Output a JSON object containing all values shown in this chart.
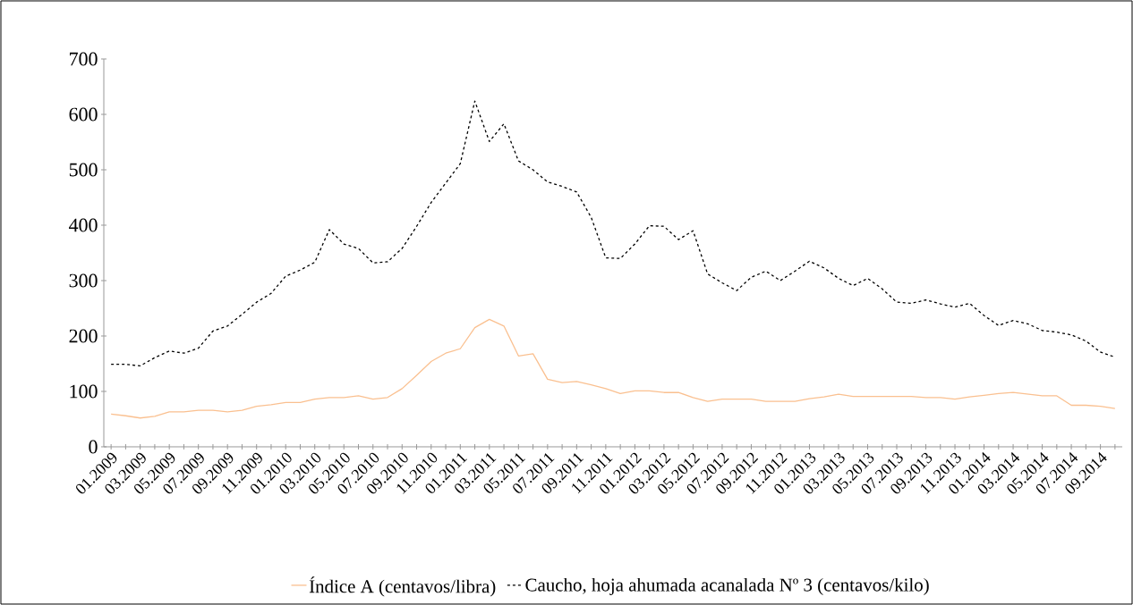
{
  "chart_data": {
    "type": "line",
    "categories": [
      "01.2009",
      null,
      "03.2009",
      null,
      "05.2009",
      null,
      "07.2009",
      null,
      "09.2009",
      null,
      "11.2009",
      null,
      "01.2010",
      null,
      "03.2010",
      null,
      "05.2010",
      null,
      "07.2010",
      null,
      "09.2010",
      null,
      "11.2010",
      null,
      "01.2011",
      null,
      "03.2011",
      null,
      "05.2011",
      null,
      "07.2011",
      null,
      "09.2011",
      null,
      "11.2011",
      null,
      "01.2012",
      null,
      "03.2012",
      null,
      "05.2012",
      null,
      "07.2012",
      null,
      "09.2012",
      null,
      "11.2012",
      null,
      "01.2013",
      null,
      "03.2013",
      null,
      "05.2013",
      null,
      "07.2013",
      null,
      "09.2013",
      null,
      "11.2013",
      null,
      "01.2014",
      null,
      "03.2014",
      null,
      "05.2014",
      null,
      "07.2014",
      null,
      "09.2014",
      null
    ],
    "series": [
      {
        "name": "Índice A (centavos/libra)",
        "color": "#fac090",
        "line_style": "solid",
        "values": [
          59,
          56,
          52,
          55,
          63,
          63,
          66,
          66,
          63,
          66,
          73,
          76,
          80,
          80,
          86,
          89,
          89,
          92,
          86,
          89,
          105,
          129,
          154,
          169,
          177,
          215,
          230,
          218,
          164,
          168,
          122,
          116,
          118,
          112,
          105,
          96,
          101,
          101,
          98,
          98,
          89,
          82,
          86,
          86,
          86,
          82,
          82,
          82,
          87,
          90,
          95,
          91,
          91,
          91,
          91,
          91,
          89,
          89,
          86,
          90,
          93,
          96,
          98,
          95,
          92,
          92,
          75,
          75,
          73,
          69
        ]
      },
      {
        "name": "Caucho, hoja ahumada acanalada Nº 3 (centavos/kilo)",
        "color": "#000000",
        "line_style": "dashed",
        "values": [
          149,
          149,
          146,
          161,
          173,
          169,
          178,
          209,
          218,
          239,
          261,
          277,
          308,
          319,
          333,
          392,
          366,
          358,
          332,
          334,
          358,
          398,
          441,
          476,
          511,
          624,
          551,
          583,
          516,
          500,
          478,
          470,
          460,
          414,
          341,
          340,
          366,
          399,
          398,
          374,
          390,
          312,
          296,
          282,
          306,
          317,
          300,
          317,
          335,
          323,
          304,
          291,
          304,
          285,
          261,
          259,
          265,
          258,
          252,
          259,
          237,
          219,
          228,
          222,
          210,
          207,
          202,
          191,
          171,
          162
        ]
      }
    ],
    "ylim": [
      0,
      700
    ],
    "yticks": [
      0,
      100,
      200,
      300,
      400,
      500,
      600,
      700
    ],
    "legend": "bottom",
    "marker": "none"
  }
}
